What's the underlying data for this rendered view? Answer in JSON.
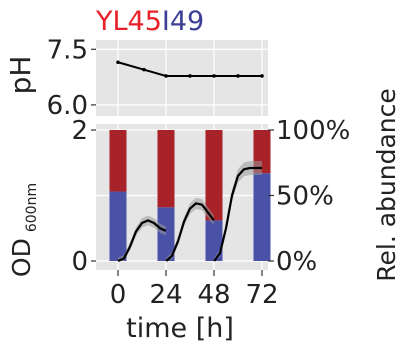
{
  "title": {
    "part1": "YL45",
    "part2": "I49",
    "color1": "#e8202a",
    "color2": "#3b3f96"
  },
  "chart_data": [
    {
      "type": "line",
      "panel": "top",
      "ylabel": "pH",
      "y_ticks": [
        "7.5",
        "6.0"
      ],
      "ylim": [
        5.7,
        7.75
      ],
      "x": [
        0,
        13,
        24,
        36,
        48,
        60,
        72
      ],
      "series": [
        {
          "values": [
            7.15,
            6.95,
            6.78,
            6.78,
            6.78,
            6.78,
            6.78
          ]
        }
      ],
      "line_color": "#000000",
      "background": "#e5e5e5",
      "grid": true
    },
    {
      "type": "bar",
      "panel": "bottom",
      "stacked": true,
      "categories": [
        0,
        24,
        48,
        72
      ],
      "series": [
        {
          "values": [
            53,
            41,
            31,
            67
          ],
          "color": "#4a52a8"
        },
        {
          "values": [
            47,
            59,
            69,
            33
          ],
          "color": "#a8222a"
        }
      ],
      "y_right_label": "Rel. abundance",
      "y_right_ticks": [
        "100%",
        "50%",
        "0%"
      ],
      "y_right_lim": [
        0,
        100
      ],
      "y_left_label": "OD",
      "y_left_label_sub": "600nm",
      "y_left_ticks": [
        "2",
        "0"
      ],
      "y_left_lim": [
        0,
        2
      ],
      "od_curve": {
        "x": [
          0,
          3,
          6,
          9,
          12,
          15,
          18,
          21,
          23.9,
          24.1,
          27,
          30,
          33,
          36,
          39,
          42,
          45,
          47.9,
          48.1,
          51,
          54,
          57,
          60,
          63,
          66,
          69,
          72
        ],
        "values": [
          0,
          0.04,
          0.22,
          0.45,
          0.58,
          0.62,
          0.58,
          0.5,
          0.46,
          0,
          0.08,
          0.3,
          0.6,
          0.8,
          0.88,
          0.86,
          0.74,
          0.62,
          0,
          0.12,
          0.5,
          1.0,
          1.3,
          1.4,
          1.42,
          1.42,
          1.42
        ],
        "color": "#000000",
        "band_color": "#9a9a9a"
      },
      "xlabel": "time [h]",
      "x_ticks": [
        "0",
        "24",
        "48",
        "72"
      ],
      "background": "#e5e5e5"
    }
  ]
}
